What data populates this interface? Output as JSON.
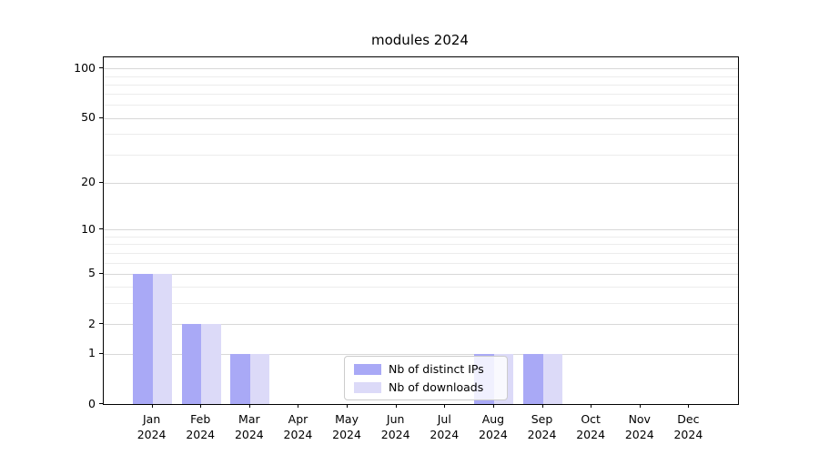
{
  "chart_data": {
    "type": "bar",
    "title": "modules 2024",
    "categories": [
      "Jan",
      "Feb",
      "Mar",
      "Apr",
      "May",
      "Jun",
      "Jul",
      "Aug",
      "Sep",
      "Oct",
      "Nov",
      "Dec"
    ],
    "x_tick_year_line": "2024",
    "series": [
      {
        "name": "Nb of distinct IPs",
        "color": "#a9a9f6",
        "values": [
          5,
          2,
          1,
          0,
          0,
          0,
          0,
          1,
          1,
          0,
          0,
          0
        ]
      },
      {
        "name": "Nb of downloads",
        "color": "#dcdaf8",
        "values": [
          5,
          2,
          1,
          0,
          0,
          0,
          0,
          1,
          1,
          0,
          0,
          0
        ]
      }
    ],
    "y_axis": {
      "scale": "log10(1+x)",
      "tick_values": [
        0,
        1,
        2,
        5,
        10,
        20,
        50,
        100
      ],
      "tick_labels": [
        "0",
        "1",
        "2",
        "5",
        "10",
        "20",
        "50",
        "100"
      ],
      "minor_tick_values": [
        3,
        4,
        6,
        7,
        8,
        9,
        30,
        40,
        60,
        70,
        80,
        90
      ],
      "ylim": [
        0,
        110
      ]
    },
    "xlabel": "",
    "ylabel": "",
    "grid": true,
    "legend_position": "lower center"
  },
  "colors": {
    "bar_distinct_ips": "#a9a9f6",
    "bar_downloads": "#dcdaf8",
    "grid_major": "#d8d8d8",
    "grid_minor": "#ececec",
    "axis": "#000000",
    "legend_border": "#cccccc",
    "background": "#ffffff"
  }
}
